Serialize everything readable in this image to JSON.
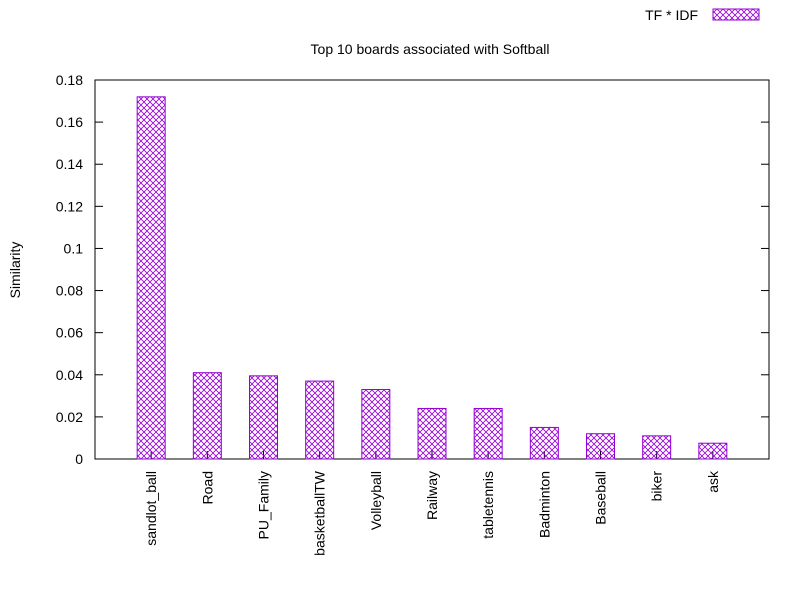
{
  "chart_data": {
    "type": "bar",
    "title": "Top 10 boards associated with Softball",
    "xlabel": "",
    "ylabel": "Similarity",
    "categories": [
      "sandlot_ball",
      "Road",
      "PU_Family",
      "basketballTW",
      "Volleyball",
      "Railway",
      "tabletennis",
      "Badminton",
      "Baseball",
      "biker",
      "ask"
    ],
    "series": [
      {
        "name": "TF * IDF",
        "values": [
          0.172,
          0.041,
          0.0395,
          0.037,
          0.033,
          0.024,
          0.024,
          0.015,
          0.012,
          0.011,
          0.0075
        ]
      }
    ],
    "ylim": [
      0,
      0.18
    ],
    "yticks": [
      "0",
      "0.02",
      "0.04",
      "0.06",
      "0.08",
      "0.1",
      "0.12",
      "0.14",
      "0.16",
      "0.18"
    ],
    "grid": false,
    "legend_position": "top-right",
    "colors": {
      "bar": "#9400d3",
      "axis": "#000000"
    }
  }
}
